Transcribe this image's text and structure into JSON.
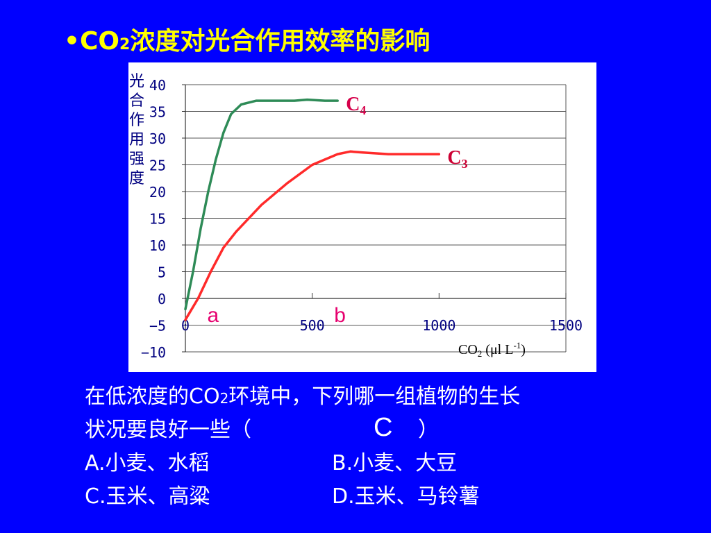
{
  "slide": {
    "title_prefix": "•CO",
    "title_subscript": "2",
    "title_suffix": "浓度对光合作用效率的影响",
    "question_line1_prefix": "在低浓度的CO",
    "question_line1_subscript": "2",
    "question_line1_suffix": "环境中，下列哪一组植物的生长",
    "question_line2_prefix": "状况要良好一些（",
    "answer": "C",
    "question_line2_suffix": "）",
    "options": {
      "A": "A.小麦、水稻",
      "B": "B.小麦、大豆",
      "C": "C.玉米、高粱",
      "D": "D.玉米、马铃薯"
    }
  },
  "chart_data": {
    "type": "line",
    "title": "",
    "ylabel_chars": [
      "光",
      "合",
      "作",
      "用",
      "强",
      "度"
    ],
    "xlabel_parts": [
      "CO",
      "2",
      " (μl L",
      "-1",
      ")"
    ],
    "xlim": [
      0,
      1500
    ],
    "ylim": [
      -10,
      40
    ],
    "x_ticks": [
      0,
      500,
      1000,
      1500
    ],
    "y_ticks": [
      40,
      35,
      30,
      25,
      20,
      15,
      10,
      5,
      0,
      -5,
      -10
    ],
    "grid": true,
    "series": [
      {
        "name": "C4",
        "label_main": "C",
        "label_sub": "4",
        "color": "#2e8b57",
        "points": [
          [
            0,
            -2
          ],
          [
            30,
            5
          ],
          [
            60,
            13
          ],
          [
            90,
            20
          ],
          [
            120,
            26
          ],
          [
            150,
            31
          ],
          [
            180,
            34.5
          ],
          [
            220,
            36.3
          ],
          [
            280,
            37
          ],
          [
            350,
            37
          ],
          [
            430,
            37
          ],
          [
            480,
            37.2
          ],
          [
            550,
            37
          ],
          [
            600,
            37
          ]
        ]
      },
      {
        "name": "C3",
        "label_main": "C",
        "label_sub": "3",
        "color": "#ff2a2a",
        "points": [
          [
            0,
            -4
          ],
          [
            50,
            0
          ],
          [
            100,
            5
          ],
          [
            150,
            9.5
          ],
          [
            200,
            12.5
          ],
          [
            300,
            17.5
          ],
          [
            400,
            21.5
          ],
          [
            500,
            25
          ],
          [
            600,
            27
          ],
          [
            650,
            27.5
          ],
          [
            700,
            27.3
          ],
          [
            800,
            27
          ],
          [
            900,
            27
          ],
          [
            1000,
            27
          ]
        ]
      }
    ],
    "annotations": [
      {
        "text": "a",
        "x": 100,
        "y": -3
      },
      {
        "text": "b",
        "x": 600,
        "y": -3
      }
    ]
  }
}
